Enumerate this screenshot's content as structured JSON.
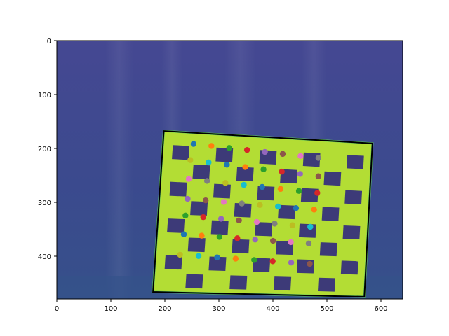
{
  "figure": {
    "x_ticks": [
      "0",
      "100",
      "200",
      "300",
      "400",
      "500",
      "600"
    ],
    "y_ticks": [
      "0",
      "100",
      "200",
      "300",
      "400"
    ],
    "xlim": [
      0,
      640
    ],
    "ylim": [
      480,
      0
    ],
    "colormap": "viridis",
    "colors": {
      "background_dark": "#3b3f8c",
      "board_light": "#b3dd34",
      "board_edge": "#5fcb5e",
      "square_dark": "#3d3a78",
      "outline": "#000000"
    },
    "board_outline_corners": [
      [
        198,
        168
      ],
      [
        584,
        191
      ],
      [
        569,
        476
      ],
      [
        178,
        467
      ]
    ],
    "detected_corners": {
      "rows": 7,
      "cols": 8,
      "row_start_points": [
        [
          253,
          192
        ],
        [
          247,
          222
        ],
        [
          244,
          257
        ],
        [
          242,
          294
        ],
        [
          238,
          325
        ],
        [
          235,
          360
        ],
        [
          228,
          398
        ]
      ],
      "row_end_points": [
        [
          484,
          218
        ],
        [
          484,
          252
        ],
        [
          482,
          283
        ],
        [
          476,
          314
        ],
        [
          469,
          346
        ],
        [
          466,
          377
        ],
        [
          468,
          415
        ]
      ],
      "point_colors": [
        "#1f77b4",
        "#ff7f0e",
        "#2ca02c",
        "#d62728",
        "#9467bd",
        "#8c564b",
        "#e377c2",
        "#7f7f7f",
        "#bcbd22",
        "#17becf"
      ]
    }
  }
}
